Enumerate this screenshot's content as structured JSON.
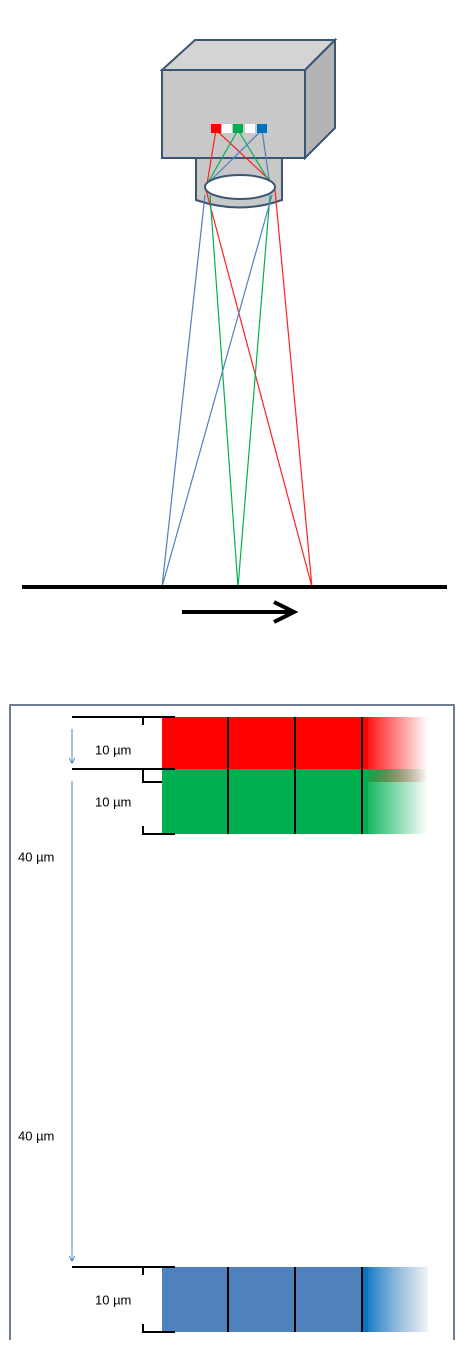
{
  "strips": [
    {
      "width_label": "10 µm",
      "gap_label": "40 µm"
    },
    {
      "width_label": "10 µm",
      "gap_label": "40 µm"
    },
    {
      "width_label": "10 µm"
    }
  ]
}
